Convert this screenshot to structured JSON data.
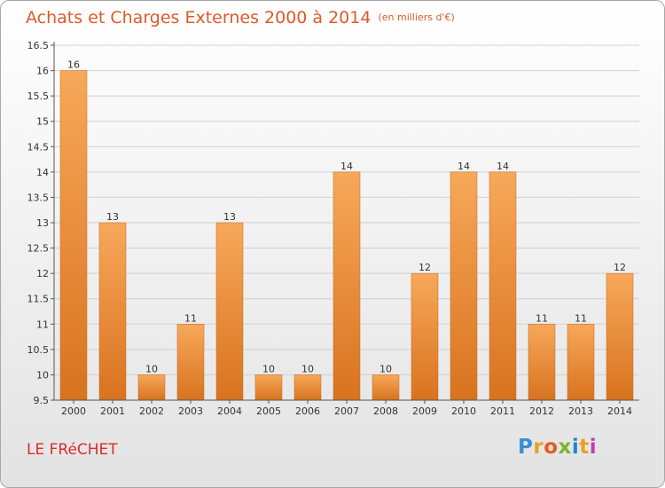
{
  "header": {
    "title": "Achats et Charges Externes 2000 à 2014",
    "unit": "(en milliers d'€)"
  },
  "footer": {
    "commune": "LE FRéCHET",
    "logo_letters": [
      "P",
      "r",
      "o",
      "x",
      "i",
      "t",
      "i"
    ],
    "logo_colors": [
      "#3a8fd0",
      "#e8a020",
      "#e85a1e",
      "#7ab52e",
      "#2a7fd0",
      "#e8a020",
      "#c040b0"
    ]
  },
  "colors": {
    "bar_light": "#f7a85a",
    "bar_dark": "#d8731f",
    "axis": "#555555",
    "grid": "#d0d0d0",
    "title": "#dd5a2a"
  },
  "chart_data": {
    "type": "bar",
    "categories": [
      "2000",
      "2001",
      "2002",
      "2003",
      "2004",
      "2005",
      "2006",
      "2007",
      "2008",
      "2009",
      "2010",
      "2011",
      "2012",
      "2013",
      "2014"
    ],
    "values": [
      16,
      13,
      10,
      11,
      13,
      10,
      10,
      14,
      10,
      12,
      14,
      14,
      11,
      11,
      12
    ],
    "data_labels": [
      "16",
      "13",
      "10",
      "11",
      "13",
      "10",
      "10",
      "14",
      "10",
      "12",
      "14",
      "14",
      "11",
      "11",
      "12"
    ],
    "yticks": [
      9.5,
      10,
      10.5,
      11,
      11.5,
      12,
      12.5,
      13,
      13.5,
      14,
      14.5,
      15,
      15.5,
      16,
      16.5
    ],
    "ytick_labels": [
      "9.5",
      "10",
      "10.5",
      "11",
      "11.5",
      "12",
      "12.5",
      "13",
      "13.5",
      "14",
      "14.5",
      "15",
      "15.5",
      "16",
      "16.5"
    ],
    "ylim": [
      9.5,
      16.5
    ],
    "xlabel": "",
    "ylabel": "",
    "grid": true
  }
}
